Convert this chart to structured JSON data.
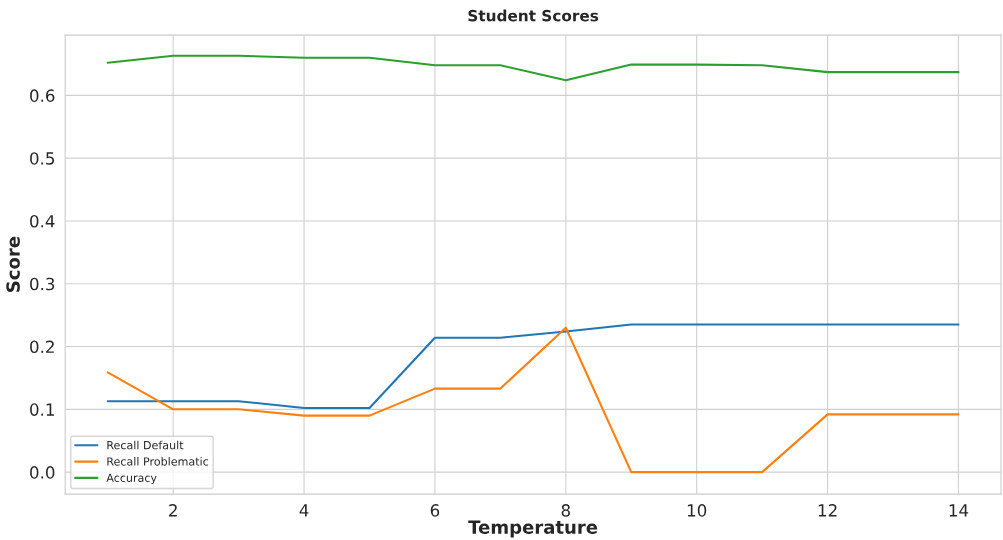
{
  "chart_data": {
    "type": "line",
    "title": "Student Scores",
    "xlabel": "Temperature",
    "ylabel": "Score",
    "x": [
      1,
      2,
      3,
      4,
      5,
      6,
      7,
      8,
      9,
      10,
      11,
      12,
      13,
      14
    ],
    "series": [
      {
        "name": "Recall Default",
        "color": "#1f77b4",
        "values": [
          0.113,
          0.113,
          0.113,
          0.102,
          0.102,
          0.214,
          0.214,
          0.224,
          0.235,
          0.235,
          0.235,
          0.235,
          0.235,
          0.235
        ]
      },
      {
        "name": "Recall Problematic",
        "color": "#ff7f0e",
        "values": [
          0.159,
          0.1,
          0.1,
          0.09,
          0.09,
          0.133,
          0.133,
          0.23,
          0.0,
          0.0,
          0.0,
          0.092,
          0.092,
          0.092
        ]
      },
      {
        "name": "Accuracy",
        "color": "#2ca02c",
        "values": [
          0.652,
          0.663,
          0.663,
          0.66,
          0.66,
          0.648,
          0.648,
          0.624,
          0.649,
          0.649,
          0.648,
          0.637,
          0.637,
          0.637
        ]
      }
    ],
    "xlim": [
      0.35,
      14.65
    ],
    "xticks": [
      2,
      4,
      6,
      8,
      10,
      12,
      14
    ],
    "ylim": [
      -0.035,
      0.696
    ],
    "yticks": [
      {
        "value": 0,
        "label": "0.0"
      },
      0.1,
      0.2,
      0.3,
      0.4,
      0.5,
      0.6
    ],
    "grid": true,
    "legend": "bottom left",
    "line_style": "solid",
    "marker": "none"
  }
}
